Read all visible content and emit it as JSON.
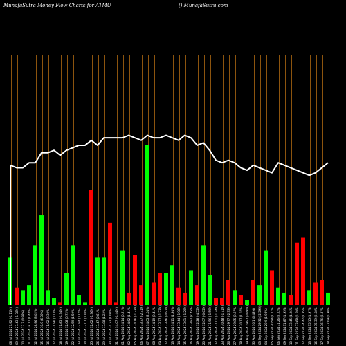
{
  "header": {
    "title": "MunafaSutra  Money Flow  Charts for ATMU",
    "site": "() MunafaSutra.com"
  },
  "chart_data": {
    "type": "bar",
    "title": "MunafaSutra  Money Flow  Charts for ATMU",
    "colors": {
      "up": "#00ff00",
      "down": "#ff0000",
      "line": "#ffffff",
      "grid": "#c87814",
      "background": "#000000"
    },
    "grid": true,
    "ylim": [
      0,
      100
    ],
    "categories": [
      "08 Jul 2024 27.92 (-0.11%)",
      "09 Jul 2024 27.43 (-1.78%)",
      "10 Jul 2024 27.7 (0.98%)",
      "11 Jul 2024 28.11 (1.48%)",
      "12 Jul 2024 28.96 (3.02%)",
      "15 Jul 2024 30.9 (6.70%)",
      "16 Jul 2024 31.92 (3.30%)",
      "17 Jul 2024 31.96 (0.13%)",
      "18 Jul 2024 31.85 (-0.34%)",
      "19 Jul 2024 32.08 (0.72%)",
      "22 Jul 2024 32.59 (1.59%)",
      "23 Jul 2024 32.84 (0.77%)",
      "24 Jul 2024 33.07 (0.70%)",
      "25 Jul 2024 32.62 (-1.36%)",
      "26 Jul 2024 33.47 (2.61%)",
      "29 Jul 2024 33.88 (1.22%)",
      "30 Jul 2024 34.22 (1.00%)",
      "31 Jul 2024 34.07 (-0.44%)",
      "01 Aug 2024 34.14 (0.21%)",
      "02 Aug 2024 34.62 (1.41%)",
      "05 Aug 2024 34.16 (-1.33%)",
      "06 Aug 2024 33.37 (-2.31%)",
      "07 Aug 2024 34.05 (2.04%)",
      "08 Aug 2024 34.19 (0.41%)",
      "09 Aug 2024 33.77 (-1.23%)",
      "12 Aug 2024 33.46 (-0.92%)",
      "13 Aug 2024 34.11 (1.94%)",
      "14 Aug 2024 33.44 (-1.96%)",
      "15 Aug 2024 33.01 (-1.29%)",
      "16 Aug 2024 33.82 (2.45%)",
      "19 Aug 2024 32.28 (-4.55%)",
      "20 Aug 2024 32.07 (-0.65%)",
      "21 Aug 2024 31.56 (-1.59%)",
      "22 Aug 2024 31.01 (-1.74%)",
      "23 Aug 2024 30.48 (-1.71%)",
      "26 Aug 2024 29.77 (-2.33%)",
      "27 Aug 2024 29.85 (0.27%)",
      "28 Aug 2024 30.17 (1.07%)",
      "29 Aug 2024 29.97 (-0.66%)",
      "30 Aug 2024 30.1 (0.43%)",
      "03 Sep 2024 29.32 (-2.59%)",
      "04 Sep 2024 29.9 (1.98%)",
      "05 Sep 2024 30.58 (2.27%)",
      "06 Sep 2024 31.26 (2.22%)",
      "09 Sep 2024 31.87 (1.95%)",
      "10 Sep 2024 33.45 (4.96%)",
      "11 Sep 2024 33.68 (0.69%)",
      "12 Sep 2024 34.47 (2.35%)",
      "13 Sep 2024 35.15 (1.97%)",
      "16 Sep 2024 35.39 (0.68%)",
      "17 Sep 2024 36.76 (3.87%)",
      "18 Sep 2024 37.09 (0.90%)"
    ],
    "series": [
      {
        "type": "bar",
        "values": [
          19,
          7,
          6,
          8,
          24,
          36,
          6,
          3,
          1,
          13,
          24,
          4,
          1,
          46,
          19,
          19,
          33,
          1,
          22,
          5,
          20,
          8,
          64,
          9,
          13,
          13,
          16,
          7,
          5,
          14,
          8,
          24,
          12,
          3,
          3,
          10,
          6,
          4,
          2,
          10,
          8,
          22,
          14,
          7,
          5,
          4,
          25,
          27,
          6,
          9,
          10,
          5
        ],
        "directions": [
          "up",
          "down",
          "up",
          "up",
          "up",
          "up",
          "up",
          "up",
          "down",
          "up",
          "up",
          "up",
          "up",
          "down",
          "up",
          "up",
          "down",
          "down",
          "up",
          "down",
          "down",
          "down",
          "up",
          "down",
          "down",
          "up",
          "up",
          "down",
          "down",
          "up",
          "down",
          "up",
          "up",
          "down",
          "red",
          "red",
          "up",
          "down",
          "up",
          "down",
          "up",
          "up",
          "down",
          "up",
          "up",
          "down",
          "down",
          "down",
          "up",
          "down",
          "down",
          "up"
        ]
      },
      {
        "type": "line",
        "values": [
          56,
          55,
          55,
          57,
          57,
          61,
          61,
          62,
          60,
          62,
          63,
          64,
          64,
          66,
          64,
          67,
          67,
          67,
          67,
          68,
          67,
          66,
          68,
          67,
          67,
          68,
          67,
          66,
          68,
          67,
          64,
          65,
          62,
          58,
          57,
          58,
          57,
          55,
          54,
          56,
          55,
          54,
          53,
          57,
          56,
          55,
          54,
          53,
          52,
          53,
          55,
          57
        ]
      }
    ]
  }
}
